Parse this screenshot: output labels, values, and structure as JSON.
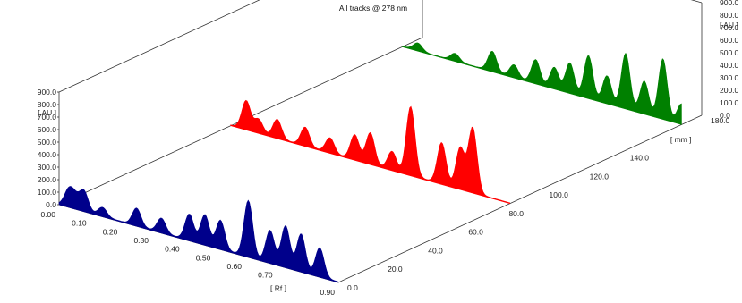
{
  "chart_data": {
    "type": "area",
    "title": "All tracks @ 278 nm",
    "x_axis": {
      "label": "[ Rf ]",
      "range": [
        0.0,
        0.9
      ],
      "ticks": [
        "0.00",
        "0.10",
        "0.20",
        "0.30",
        "0.40",
        "0.50",
        "0.60",
        "0.70",
        "0.90"
      ]
    },
    "z_axis": {
      "label": "[ AU ]",
      "range": [
        0,
        900
      ],
      "ticks": [
        "0.0",
        "100.0",
        "200.0",
        "300.0",
        "400.0",
        "500.0",
        "600.0",
        "700.0",
        "800.0",
        "900.0"
      ]
    },
    "depth_axis": {
      "label": "[ mm ]",
      "range": [
        0,
        180
      ],
      "ticks": [
        "0.0",
        "20.0",
        "40.0",
        "60.0",
        "80.0",
        "100.0",
        "120.0",
        "140.0",
        "180.0"
      ]
    },
    "series": [
      {
        "color": "#00008b",
        "track_mm": 0,
        "peaks": [
          [
            0.03,
            120
          ],
          [
            0.05,
            90
          ],
          [
            0.08,
            160
          ],
          [
            0.14,
            70
          ],
          [
            0.25,
            140
          ],
          [
            0.33,
            115
          ],
          [
            0.42,
            210
          ],
          [
            0.47,
            240
          ],
          [
            0.52,
            230
          ],
          [
            0.61,
            450
          ],
          [
            0.68,
            260
          ],
          [
            0.73,
            330
          ],
          [
            0.78,
            300
          ],
          [
            0.84,
            230
          ]
        ]
      },
      {
        "color": "#ff0000",
        "track_mm": 85,
        "peaks": [
          [
            0.05,
            230
          ],
          [
            0.09,
            110
          ],
          [
            0.15,
            150
          ],
          [
            0.24,
            150
          ],
          [
            0.32,
            120
          ],
          [
            0.4,
            200
          ],
          [
            0.45,
            250
          ],
          [
            0.52,
            150
          ],
          [
            0.58,
            550
          ],
          [
            0.68,
            330
          ],
          [
            0.74,
            330
          ],
          [
            0.78,
            520
          ]
        ]
      },
      {
        "color": "#008000",
        "track_mm": 170,
        "peaks": [
          [
            0.05,
            60
          ],
          [
            0.17,
            60
          ],
          [
            0.29,
            160
          ],
          [
            0.36,
            100
          ],
          [
            0.43,
            190
          ],
          [
            0.49,
            170
          ],
          [
            0.54,
            240
          ],
          [
            0.6,
            340
          ],
          [
            0.66,
            220
          ],
          [
            0.72,
            440
          ],
          [
            0.78,
            260
          ],
          [
            0.84,
            480
          ],
          [
            0.9,
            160
          ]
        ]
      }
    ]
  }
}
